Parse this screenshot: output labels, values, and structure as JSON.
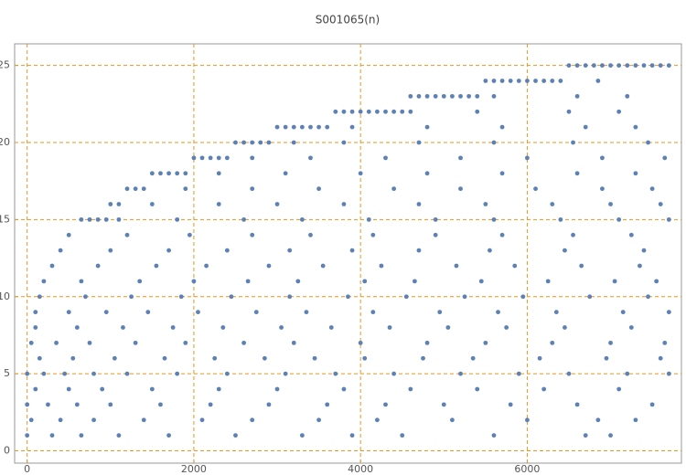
{
  "chart_data": {
    "type": "scatter",
    "title": "S001065(n)",
    "color": "#5e81b5",
    "grid": true,
    "grid_color": "#e8961e",
    "xlim": [
      -150,
      7850
    ],
    "ylim": [
      -0.8,
      26.4
    ],
    "xticks": [
      0,
      2000,
      4000,
      6000
    ],
    "yticks": [
      0,
      5,
      10,
      15,
      20,
      25
    ],
    "x": [
      650,
      750,
      850,
      950,
      1000,
      1100,
      1200,
      1300,
      1400,
      1500,
      1600,
      1700,
      1800,
      1900,
      2000,
      2100,
      2200,
      2300,
      2400,
      2500,
      2600,
      2700,
      2800,
      2900,
      3000,
      3100,
      3200,
      3300,
      3400,
      3500,
      3600,
      3700,
      3800,
      3900,
      4000,
      4100,
      4200,
      4300,
      4400,
      4500,
      4600,
      4700,
      4800,
      4900,
      5000,
      5100,
      5200,
      5300,
      5400,
      5500,
      5600,
      5700,
      5800,
      5900,
      6000,
      6100,
      6200,
      6300,
      6400,
      6500,
      6600,
      6700,
      6800,
      6900,
      7000,
      7100,
      7200,
      7300,
      7400,
      7500,
      7600,
      7700,
      0,
      300,
      650,
      1100,
      1700,
      2500,
      3300,
      3900,
      4500,
      5600,
      6700,
      7000,
      50,
      400,
      800,
      1400,
      2100,
      2700,
      3500,
      4200,
      5100,
      6000,
      6850,
      7300,
      0,
      250,
      600,
      1000,
      1600,
      2200,
      2900,
      3600,
      4300,
      5000,
      5800,
      6600,
      7500,
      100,
      500,
      900,
      1500,
      2300,
      3000,
      3800,
      4600,
      5400,
      6200,
      7100,
      0,
      200,
      450,
      800,
      1200,
      1800,
      2400,
      3100,
      3700,
      4400,
      5200,
      5900,
      6500,
      7200,
      7700,
      150,
      550,
      1050,
      1650,
      2250,
      2850,
      3450,
      4050,
      4750,
      5350,
      6150,
      6950,
      7600,
      50,
      350,
      750,
      1300,
      1900,
      2600,
      3200,
      4000,
      4800,
      5500,
      6300,
      7000,
      7650,
      100,
      600,
      1150,
      1750,
      2350,
      3050,
      3650,
      4350,
      5050,
      5750,
      6450,
      7250,
      100,
      500,
      950,
      1450,
      2050,
      2750,
      3350,
      4150,
      4950,
      5650,
      6350,
      7150,
      7700,
      150,
      700,
      1250,
      1850,
      2450,
      3150,
      3850,
      4550,
      5250,
      5950,
      6750,
      7450,
      200,
      650,
      1350,
      2000,
      2650,
      3250,
      4050,
      4650,
      5450,
      6250,
      7050,
      7550,
      300,
      850,
      1550,
      2150,
      2900,
      3550,
      4250,
      5150,
      5850,
      6650,
      7350,
      400,
      1000,
      1700,
      2400,
      3150,
      3900,
      4700,
      5550,
      6450,
      7400,
      500,
      1200,
      1950,
      2700,
      3400,
      4150,
      4900,
      5700,
      6550,
      7250,
      1100,
      1800,
      2600,
      3300,
      4100,
      4900,
      5600,
      6400,
      7100,
      7700,
      1500,
      2300,
      3000,
      3800,
      4700,
      5500,
      6300,
      7000,
      7600,
      1900,
      2700,
      3500,
      4400,
      5200,
      6100,
      6900,
      7500,
      2300,
      3100,
      4000,
      4800,
      5700,
      6600,
      7300,
      2700,
      3400,
      4300,
      5200,
      6000,
      6900,
      7650,
      3200,
      3800,
      4700,
      5600,
      6550,
      7450,
      3900,
      4800,
      5700,
      6700,
      7300,
      4600,
      5400,
      6500,
      7100,
      5600,
      6600,
      7200,
      6850
    ],
    "values": [
      15,
      15,
      15,
      15,
      16,
      16,
      17,
      17,
      17,
      18,
      18,
      18,
      18,
      18,
      19,
      19,
      19,
      19,
      19,
      20,
      20,
      20,
      20,
      20,
      21,
      21,
      21,
      21,
      21,
      21,
      21,
      22,
      22,
      22,
      22,
      22,
      22,
      22,
      22,
      22,
      23,
      23,
      23,
      23,
      23,
      23,
      23,
      23,
      23,
      24,
      24,
      24,
      24,
      24,
      24,
      24,
      24,
      24,
      24,
      25,
      25,
      25,
      25,
      25,
      25,
      25,
      25,
      25,
      25,
      25,
      25,
      25,
      1,
      1,
      1,
      1,
      1,
      1,
      1,
      1,
      1,
      1,
      1,
      1,
      2,
      2,
      2,
      2,
      2,
      2,
      2,
      2,
      2,
      2,
      2,
      2,
      3,
      3,
      3,
      3,
      3,
      3,
      3,
      3,
      3,
      3,
      3,
      3,
      3,
      4,
      4,
      4,
      4,
      4,
      4,
      4,
      4,
      4,
      4,
      4,
      5,
      5,
      5,
      5,
      5,
      5,
      5,
      5,
      5,
      5,
      5,
      5,
      5,
      5,
      5,
      6,
      6,
      6,
      6,
      6,
      6,
      6,
      6,
      6,
      6,
      6,
      6,
      6,
      7,
      7,
      7,
      7,
      7,
      7,
      7,
      7,
      7,
      7,
      7,
      7,
      7,
      8,
      8,
      8,
      8,
      8,
      8,
      8,
      8,
      8,
      8,
      8,
      8,
      9,
      9,
      9,
      9,
      9,
      9,
      9,
      9,
      9,
      9,
      9,
      9,
      9,
      10,
      10,
      10,
      10,
      10,
      10,
      10,
      10,
      10,
      10,
      10,
      10,
      11,
      11,
      11,
      11,
      11,
      11,
      11,
      11,
      11,
      11,
      11,
      11,
      12,
      12,
      12,
      12,
      12,
      12,
      12,
      12,
      12,
      12,
      12,
      13,
      13,
      13,
      13,
      13,
      13,
      13,
      13,
      13,
      13,
      14,
      14,
      14,
      14,
      14,
      14,
      14,
      14,
      14,
      14,
      15,
      15,
      15,
      15,
      15,
      15,
      15,
      15,
      15,
      15,
      16,
      16,
      16,
      16,
      16,
      16,
      16,
      16,
      16,
      17,
      17,
      17,
      17,
      17,
      17,
      17,
      17,
      18,
      18,
      18,
      18,
      18,
      18,
      18,
      19,
      19,
      19,
      19,
      19,
      19,
      19,
      20,
      20,
      20,
      20,
      20,
      20,
      21,
      21,
      21,
      21,
      21,
      22,
      22,
      22,
      22,
      23,
      23,
      23,
      24
    ]
  }
}
